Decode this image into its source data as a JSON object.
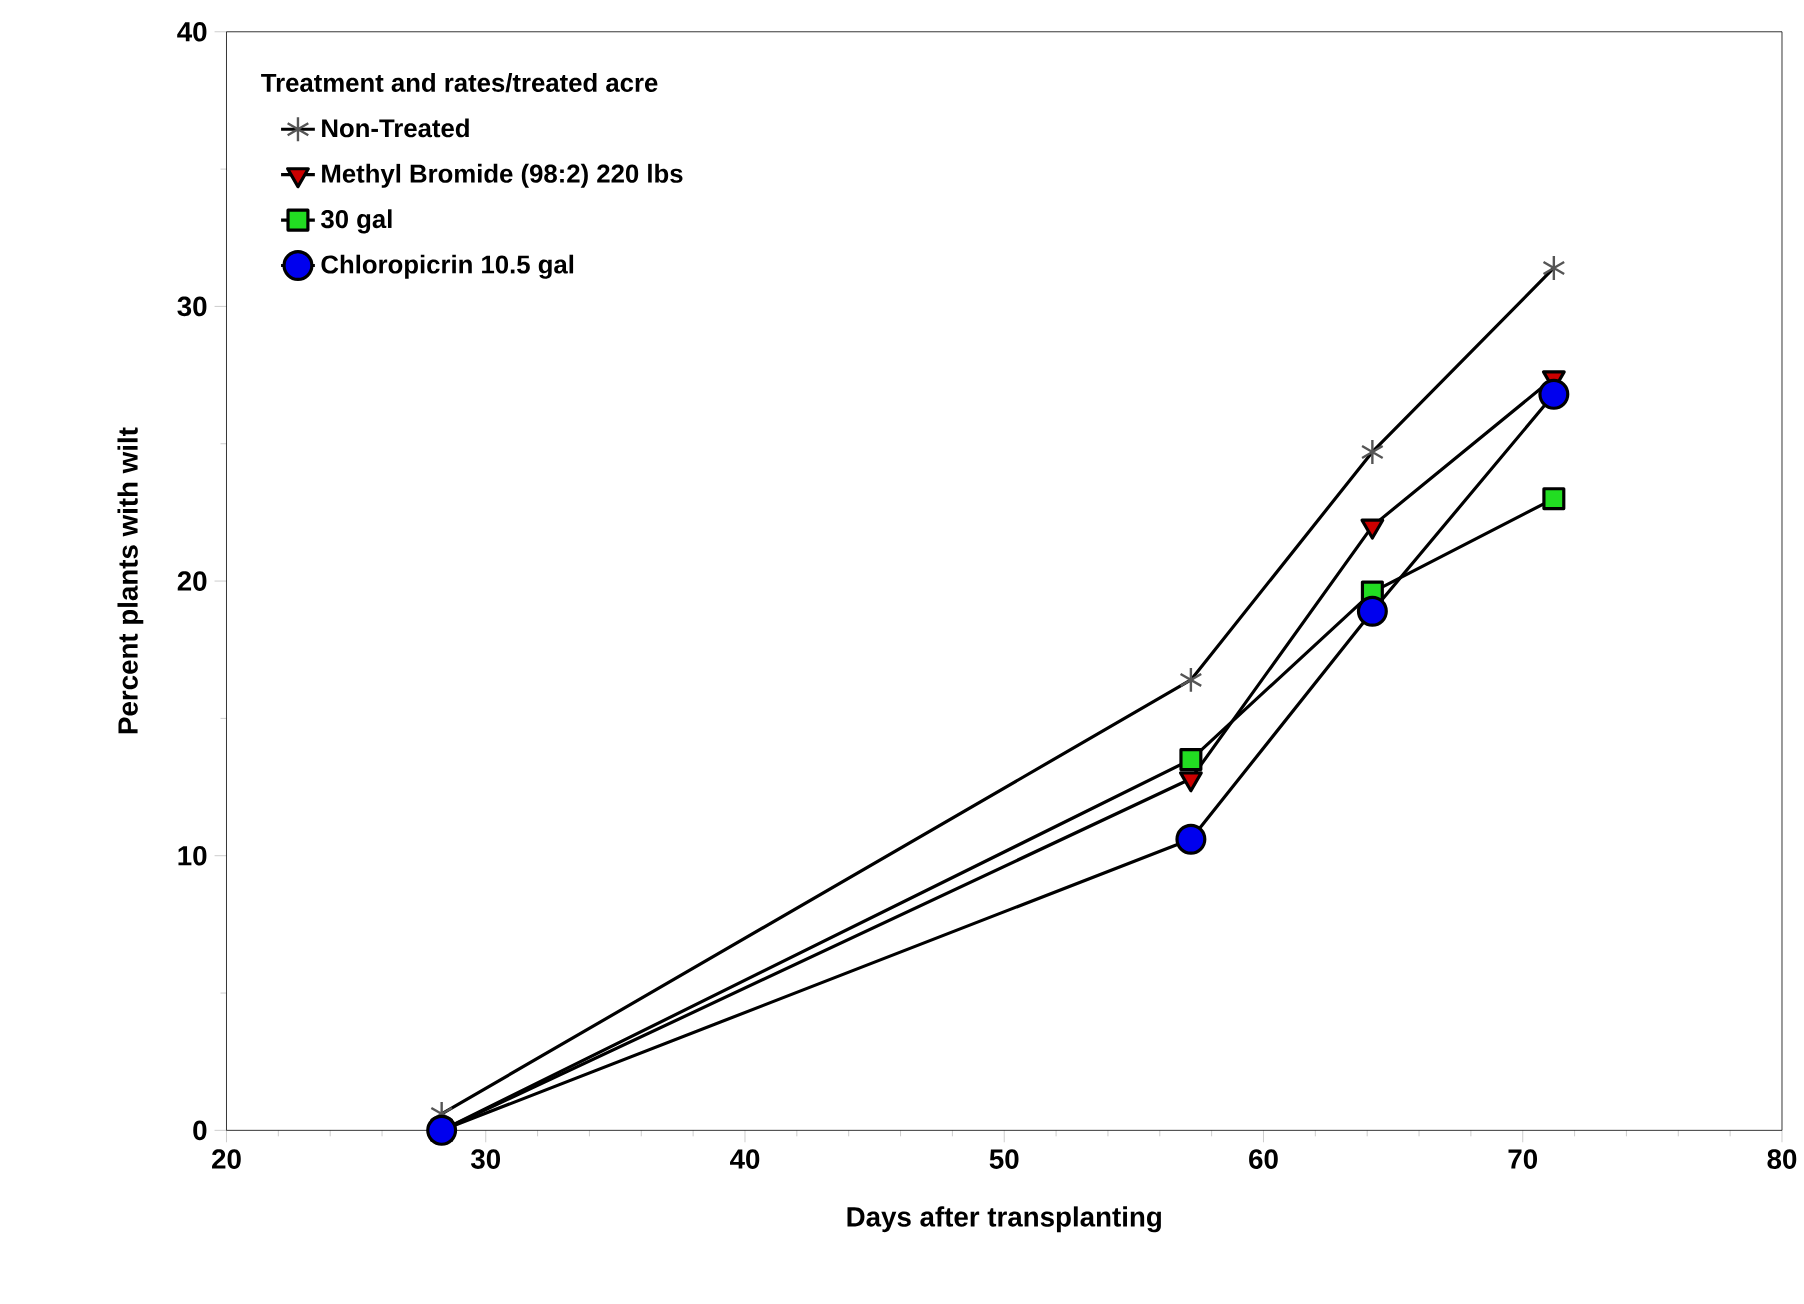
{
  "chart_data": {
    "type": "line",
    "xlabel": "Days after transplanting",
    "ylabel": "Percent plants with wilt",
    "legend_title": "Treatment and rates/treated acre",
    "x": [
      28.3,
      57.2,
      64.2,
      71.2
    ],
    "series": [
      {
        "name": "Non-Treated",
        "color": "#555555",
        "marker": "cross",
        "values": [
          0.6,
          16.4,
          24.7,
          31.4
        ]
      },
      {
        "name": "Methyl Bromide (98:2) 220 lbs",
        "color": "#cc0000",
        "marker": "triangle",
        "values": [
          0,
          12.8,
          22.0,
          27.4
        ]
      },
      {
        "name": "30 gal",
        "color": "#22dd22",
        "marker": "square",
        "values": [
          0,
          13.5,
          19.6,
          23.0
        ]
      },
      {
        "name": "Chloropicrin 10.5 gal",
        "color": "#0000ee",
        "marker": "circle",
        "values": [
          0,
          10.6,
          18.9,
          26.8
        ]
      }
    ],
    "xlim": [
      20,
      80
    ],
    "xticks": [
      20,
      30,
      40,
      50,
      60,
      70,
      80
    ],
    "ylim": [
      0,
      40
    ],
    "yticks": [
      0,
      10,
      20,
      30,
      40
    ],
    "grid": false,
    "legend": "top left",
    "line_style": "solid"
  }
}
